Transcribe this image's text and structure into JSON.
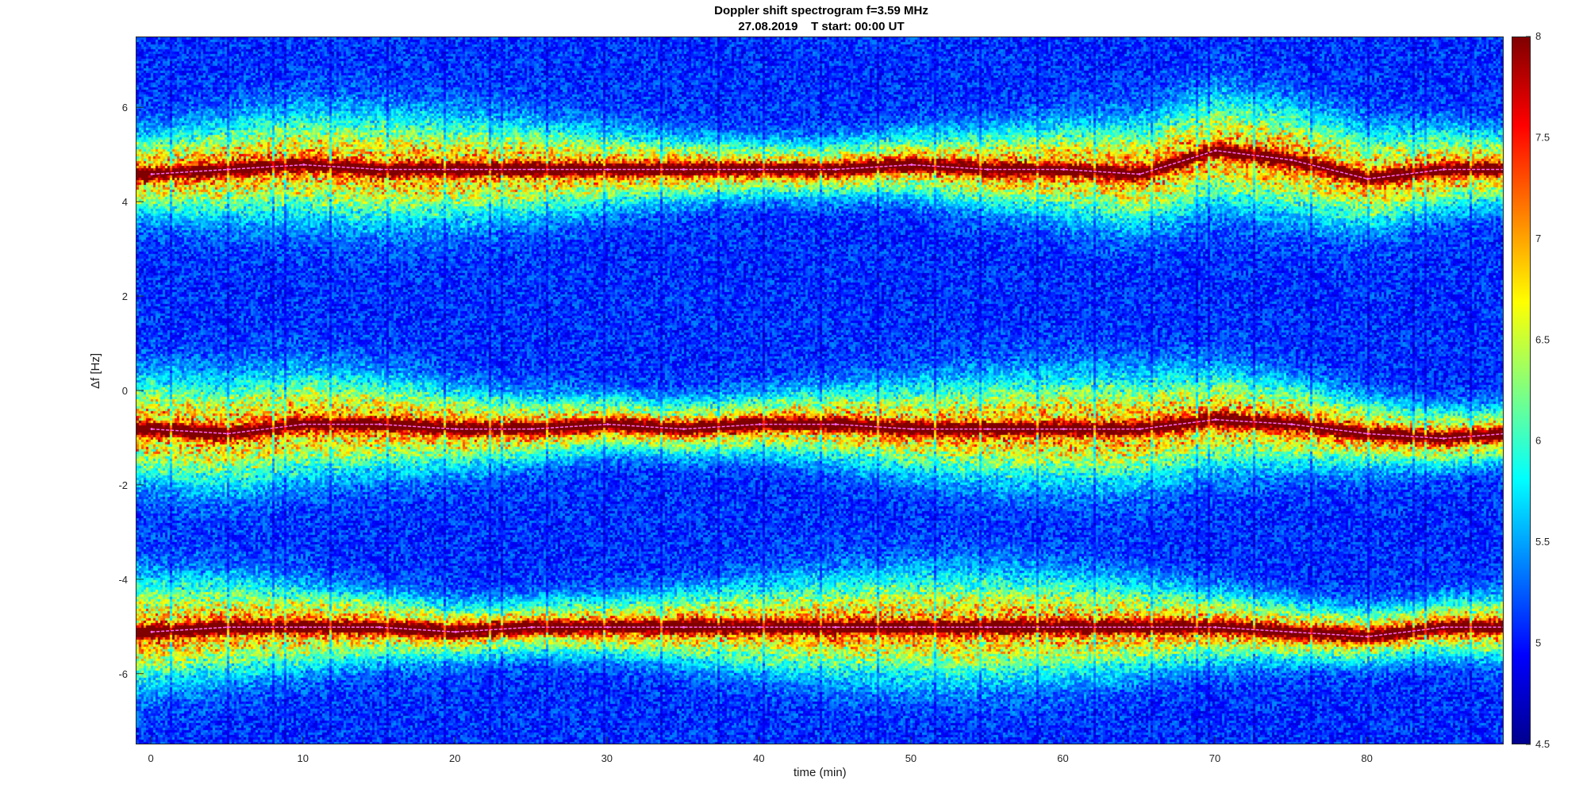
{
  "chart_data": {
    "type": "heatmap",
    "title": "Doppler shift spectrogram f=3.59 MHz",
    "subtitle": "27.08.2019    T start: 00:00 UT",
    "xlabel": "time (min)",
    "ylabel": "Δf [Hz]",
    "xlim": [
      -1,
      89
    ],
    "ylim": [
      -7.5,
      7.5
    ],
    "xticks": [
      0,
      10,
      20,
      30,
      40,
      50,
      60,
      70,
      80
    ],
    "yticks": [
      -6,
      -4,
      -2,
      0,
      2,
      4,
      6
    ],
    "colorbar": {
      "range": [
        4.5,
        8
      ],
      "ticks": [
        4.5,
        5,
        5.5,
        6,
        6.5,
        7,
        7.5,
        8
      ],
      "colormap": "jet"
    },
    "colors": {
      "background": "#00008f",
      "trace": "#ff66ff",
      "detection": "#000000"
    },
    "series": [
      {
        "x": [
          0,
          5,
          10,
          15,
          20,
          25,
          30,
          35,
          40,
          45,
          50,
          55,
          60,
          65,
          70,
          75,
          80,
          85,
          89
        ],
        "values": [
          4.6,
          4.7,
          4.8,
          4.7,
          4.7,
          4.7,
          4.7,
          4.7,
          4.7,
          4.7,
          4.8,
          4.7,
          4.7,
          4.6,
          5.1,
          4.9,
          4.5,
          4.7,
          4.7
        ]
      },
      {
        "x": [
          0,
          5,
          10,
          15,
          20,
          25,
          30,
          35,
          40,
          45,
          50,
          55,
          60,
          65,
          70,
          75,
          80,
          85,
          89
        ],
        "values": [
          -0.8,
          -0.9,
          -0.7,
          -0.7,
          -0.8,
          -0.8,
          -0.7,
          -0.8,
          -0.7,
          -0.7,
          -0.8,
          -0.8,
          -0.8,
          -0.8,
          -0.6,
          -0.7,
          -0.9,
          -1.0,
          -0.9
        ]
      },
      {
        "x": [
          0,
          5,
          10,
          15,
          20,
          25,
          30,
          35,
          40,
          45,
          50,
          55,
          60,
          65,
          70,
          75,
          80,
          85,
          89
        ],
        "values": [
          -5.1,
          -5.0,
          -5.0,
          -5.0,
          -5.1,
          -5.0,
          -5.0,
          -5.0,
          -5.0,
          -5.0,
          -5.0,
          -5.0,
          -5.0,
          -5.0,
          -5.0,
          -5.1,
          -5.2,
          -5.0,
          -5.0
        ]
      }
    ]
  }
}
